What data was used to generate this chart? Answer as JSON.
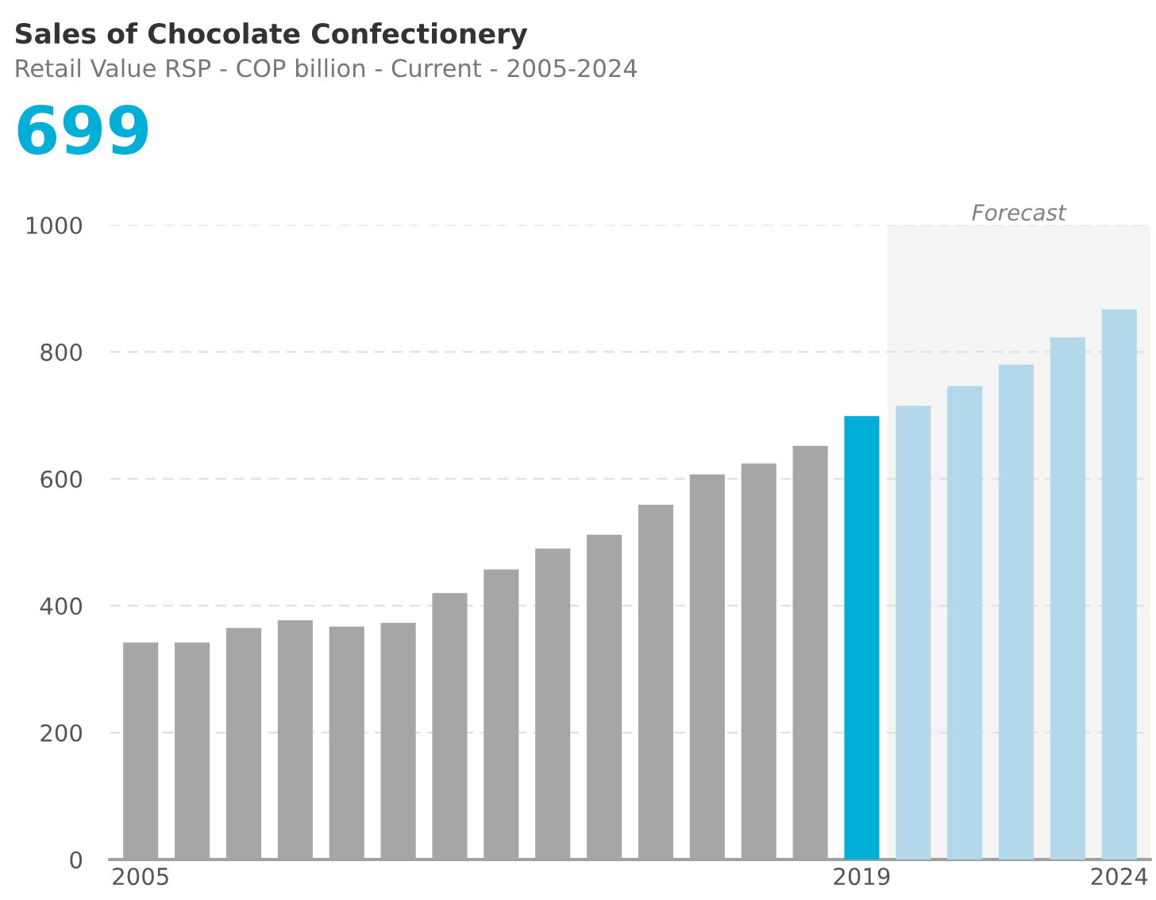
{
  "chart_data": {
    "type": "bar",
    "title": "Sales of Chocolate Confectionery",
    "subtitle": "Retail Value RSP - COP billion - Current - 2005-2024",
    "annotations": [
      "699"
    ],
    "x": [
      2005,
      2006,
      2007,
      2008,
      2009,
      2010,
      2011,
      2012,
      2013,
      2014,
      2015,
      2016,
      2017,
      2018,
      2019,
      2020,
      2021,
      2022,
      2023,
      2024
    ],
    "values": [
      342,
      342,
      365,
      377,
      367,
      373,
      420,
      457,
      490,
      512,
      559,
      607,
      624,
      652,
      699,
      715,
      746,
      780,
      823,
      867
    ],
    "colors": [
      "#a5a6a8",
      "#a5a6a8",
      "#a5a6a8",
      "#a5a6a8",
      "#a5a6a8",
      "#a5a6a8",
      "#a5a6a8",
      "#a5a6a8",
      "#a5a6a8",
      "#a5a6a8",
      "#a5a6a8",
      "#a5a6a8",
      "#a5a6a8",
      "#a5a6a8",
      "#00afd8",
      "#b3d8ea",
      "#b3d8ea",
      "#b3d8ea",
      "#b3d8ea",
      "#b3d8ea"
    ],
    "xlim": [
      2004.4,
      2024.6
    ],
    "xticks": [
      2005,
      2019,
      2024
    ],
    "ylim": [
      0,
      1000
    ],
    "yticks": [
      0,
      200,
      400,
      600,
      800,
      1000
    ],
    "bands": [
      {
        "axis": "x",
        "from": 2019.5,
        "to": 2024.6,
        "label": "Forecast",
        "color": "#f4f4f4"
      }
    ],
    "grid": "y"
  }
}
